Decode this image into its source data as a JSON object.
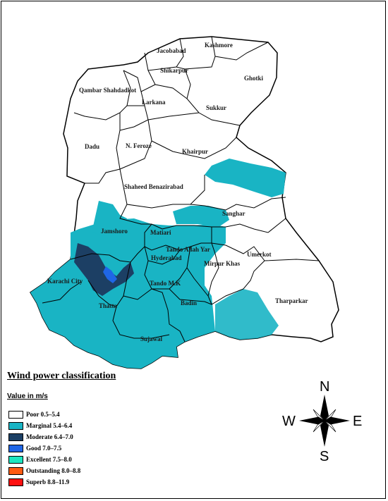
{
  "districts": [
    {
      "name": "Kashmore"
    },
    {
      "name": "Jacobabad"
    },
    {
      "name": "Shikarpur"
    },
    {
      "name": "Ghotki"
    },
    {
      "name": "Qambar Shahdadkot"
    },
    {
      "name": "Larkana"
    },
    {
      "name": "Sukkur"
    },
    {
      "name": "Dadu"
    },
    {
      "name": "N. Feroze"
    },
    {
      "name": "Khairpur"
    },
    {
      "name": "Shaheed Benazirabad"
    },
    {
      "name": "Sanghar"
    },
    {
      "name": "Jamshoro"
    },
    {
      "name": "Matiari"
    },
    {
      "name": "Tando Allah Yar"
    },
    {
      "name": "Hyderabad"
    },
    {
      "name": "Mirpur Khas"
    },
    {
      "name": "Umerkot"
    },
    {
      "name": "Karachi City"
    },
    {
      "name": "Tando M.K"
    },
    {
      "name": "Thatta"
    },
    {
      "name": "Badin"
    },
    {
      "name": "Tharparkar"
    },
    {
      "name": "Sujawal"
    }
  ],
  "legend": {
    "title": "Wind power classification",
    "subtitle": "Value in m/s",
    "items": [
      {
        "label": "Poor 0.5–5.4",
        "color": "#ffffff"
      },
      {
        "label": "Marginal 5.4–6.4",
        "color": "#19b4c4"
      },
      {
        "label": "Moderate 6.4–7.0",
        "color": "#1c3f64"
      },
      {
        "label": "Good 7.0–7.5",
        "color": "#1f66e6"
      },
      {
        "label": "Excellent 7.5–8.0",
        "color": "#1de6c2"
      },
      {
        "label": "Outstanding 8.0–8.8",
        "color": "#ff5a12"
      },
      {
        "label": "Superb 8.8–11.9",
        "color": "#ff1111"
      }
    ]
  },
  "compass": {
    "n": "N",
    "e": "E",
    "s": "S",
    "w": "W"
  }
}
